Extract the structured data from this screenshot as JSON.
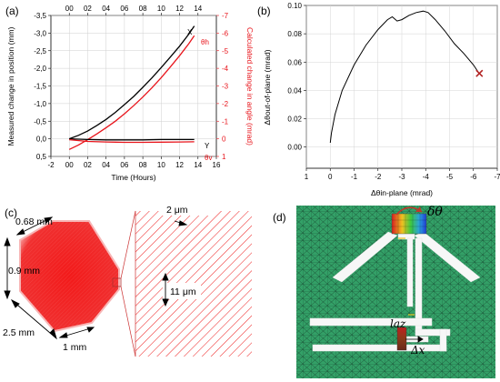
{
  "panels": {
    "a": {
      "label": "(a)"
    },
    "b": {
      "label": "(b)"
    },
    "c": {
      "label": "(c)"
    },
    "d": {
      "label": "(d)"
    }
  },
  "chart_data": [
    {
      "type": "line",
      "panel": "(a)",
      "xlabel": "Time (Hours)",
      "ylabel": "Measured change in position (mm)",
      "ylabel_right": "Calculated change in angle (mrad)",
      "xlim": [
        -2,
        16
      ],
      "ylim": [
        0.5,
        -3.5
      ],
      "ylim_right": [
        1,
        -7
      ],
      "x_ticks": [
        0,
        2,
        4,
        6,
        8,
        10,
        12,
        14
      ],
      "x_tick_labels": [
        "00",
        "02",
        "04",
        "06",
        "08",
        "10",
        "12",
        "14"
      ],
      "x_ticks_outer": [
        -2,
        16
      ],
      "x_tick_labels_outer": [
        "-2",
        "16"
      ],
      "top_x_ticks": [
        0,
        2,
        4,
        6,
        8,
        10,
        12,
        14
      ],
      "top_x_tick_labels": [
        "00",
        "02",
        "04",
        "06",
        "08",
        "10",
        "12",
        "14"
      ],
      "y_ticks": [
        -3.5,
        -3.0,
        -2.5,
        -2.0,
        -1.5,
        -1.0,
        -0.5,
        0.0,
        0.5
      ],
      "y_tick_labels": [
        "-3,5",
        "-3,0",
        "-2,5",
        "-2,0",
        "-1,5",
        "-1,0",
        "-0,5",
        "0,0",
        "0,5"
      ],
      "y_ticks_right": [
        -7,
        -6,
        -5,
        -4,
        -3,
        -2,
        -1,
        0,
        1
      ],
      "y_tick_labels_right": [
        "-7",
        "-6",
        "-5",
        "-4",
        "-3",
        "-2",
        "-1",
        "0",
        "1"
      ],
      "grid": true,
      "colors": {
        "position": "#000000",
        "angle": "#e8141b"
      },
      "series": [
        {
          "name": "X",
          "axis": "left",
          "color": "#000000",
          "x": [
            0,
            1,
            2,
            3,
            4,
            5,
            6,
            7,
            8,
            9,
            10,
            11,
            12,
            13,
            13.6
          ],
          "y": [
            0.0,
            -0.1,
            -0.22,
            -0.38,
            -0.55,
            -0.75,
            -0.97,
            -1.2,
            -1.46,
            -1.73,
            -2.02,
            -2.32,
            -2.63,
            -2.97,
            -3.2
          ]
        },
        {
          "name": "θh",
          "axis": "right",
          "color": "#e8141b",
          "x": [
            0,
            1,
            2,
            3,
            4,
            5,
            6,
            7,
            8,
            9,
            10,
            11,
            12,
            13,
            13.6
          ],
          "y": [
            0.6,
            0.35,
            0.05,
            -0.28,
            -0.63,
            -1.0,
            -1.42,
            -1.88,
            -2.37,
            -2.9,
            -3.47,
            -4.08,
            -4.72,
            -5.4,
            -5.85
          ]
        },
        {
          "name": "Y",
          "axis": "left",
          "color": "#000000",
          "x": [
            0,
            2,
            4,
            6,
            8,
            10,
            12,
            13.6
          ],
          "y": [
            0.0,
            0.02,
            0.03,
            0.03,
            0.03,
            0.02,
            0.02,
            0.02
          ]
        },
        {
          "name": "θv",
          "axis": "right",
          "color": "#e8141b",
          "x": [
            0,
            2,
            4,
            6,
            8,
            10,
            12,
            13.6
          ],
          "y": [
            0.05,
            0.15,
            0.18,
            0.2,
            0.2,
            0.19,
            0.18,
            0.17
          ]
        }
      ]
    },
    {
      "type": "line",
      "panel": "(b)",
      "xlabel": "Δθin-plane (mrad)",
      "ylabel": "Δθout-of-plane (mrad)",
      "xlim": [
        1,
        -7
      ],
      "ylim": [
        -0.015,
        0.1
      ],
      "x_ticks": [
        1,
        0,
        -1,
        -2,
        -3,
        -4,
        -5,
        -6,
        -7
      ],
      "x_tick_labels": [
        "1",
        "0",
        "-1",
        "-2",
        "-3",
        "-4",
        "-5",
        "-6",
        "-7"
      ],
      "y_ticks": [
        0.0,
        0.02,
        0.04,
        0.06,
        0.08,
        0.1
      ],
      "y_tick_labels": [
        "0.00",
        "0.02",
        "0.04",
        "0.06",
        "0.08",
        "0.10"
      ],
      "grid": true,
      "series": [
        {
          "color": "#000000",
          "x": [
            0.0,
            -0.05,
            -0.2,
            -0.5,
            -1.0,
            -1.5,
            -2.0,
            -2.4,
            -2.6,
            -2.8,
            -3.0,
            -3.3,
            -3.6,
            -3.9,
            -4.1,
            -4.4,
            -4.8,
            -5.2,
            -5.6,
            -6.0,
            -6.2
          ],
          "y": [
            0.003,
            0.01,
            0.023,
            0.04,
            0.058,
            0.072,
            0.083,
            0.09,
            0.092,
            0.089,
            0.09,
            0.093,
            0.095,
            0.096,
            0.095,
            0.09,
            0.082,
            0.073,
            0.066,
            0.058,
            0.053
          ]
        }
      ],
      "marker": {
        "shape": "x",
        "color": "#b22222",
        "x": -6.25,
        "y": 0.052
      }
    }
  ],
  "diagram_c": {
    "label_0": "0.68 mm",
    "label_1": "0.9 mm",
    "label_2": "2.5 mm",
    "label_3": "1 mm",
    "label_4": "2 μm",
    "label_5": "11 μm",
    "colors": {
      "grating": "#ee1c1c",
      "zoom_lines": "#cc3333"
    }
  },
  "diagram_d": {
    "label_theta": "δθ",
    "label_laz": "laz",
    "label_dx": "Δx",
    "colors": {
      "mesh_bg": "#2e9a62",
      "mesh_line": "#173d2a",
      "beam": "#f5f5f5",
      "arrow": "#c0392b"
    }
  }
}
